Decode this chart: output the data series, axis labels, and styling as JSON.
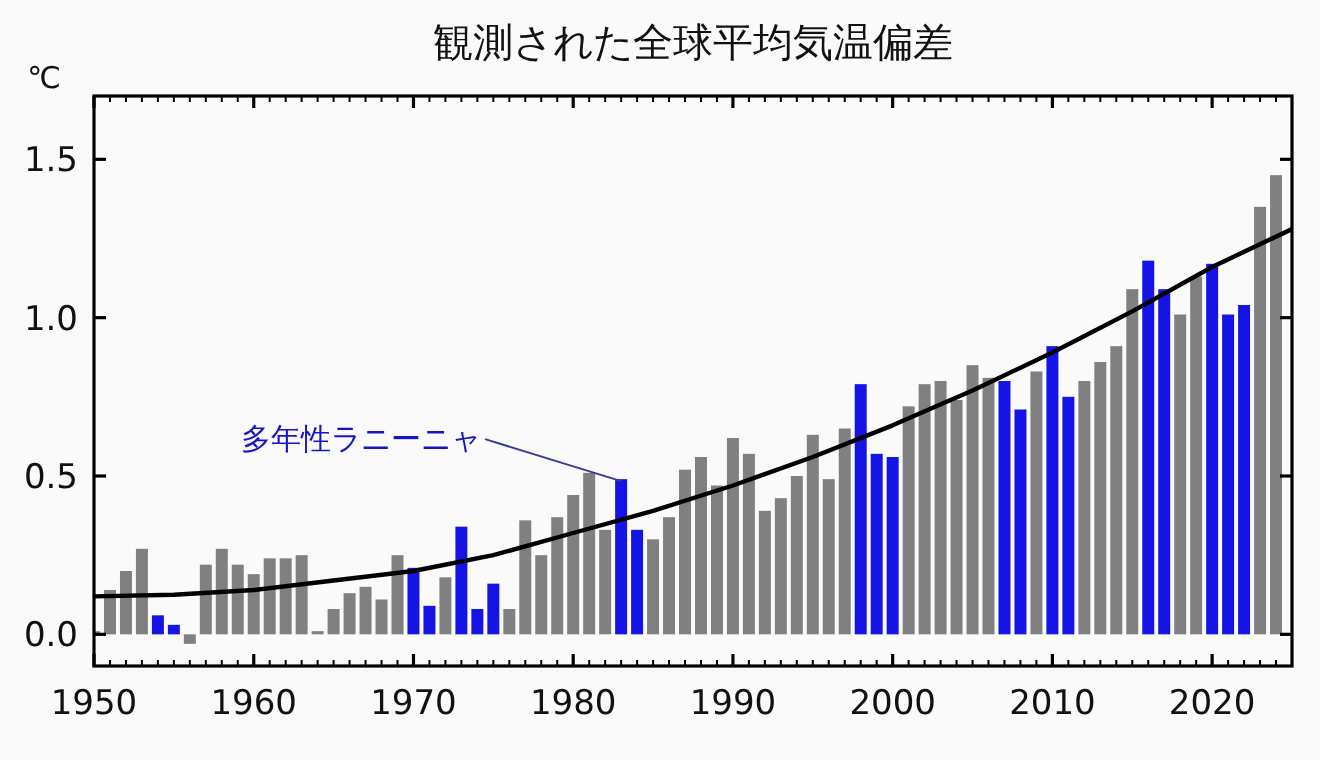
{
  "chart_data": {
    "type": "bar",
    "title": "観測された全球平均気温偏差",
    "ylabel": "℃",
    "xlim": [
      1950,
      2025
    ],
    "xticks": [
      1950,
      1960,
      1970,
      1980,
      1990,
      2000,
      2010,
      2020
    ],
    "ylim": [
      -0.1,
      1.7
    ],
    "yticks": [
      {
        "value": 0,
        "label": "0.0"
      },
      0.5,
      {
        "value": 1,
        "label": "1.0"
      },
      1.5
    ],
    "grid": false,
    "annotations": [
      {
        "text": "多年性ラニーニャ",
        "x": 1983,
        "y": 0.49
      }
    ],
    "series": [
      {
        "x": [
          1950,
          1951,
          1952,
          1953,
          1954,
          1955,
          1956,
          1957,
          1958,
          1959,
          1960,
          1961,
          1962,
          1963,
          1964,
          1965,
          1966,
          1967,
          1968,
          1969,
          1970,
          1971,
          1972,
          1973,
          1974,
          1975,
          1976,
          1977,
          1978,
          1979,
          1980,
          1981,
          1982,
          1983,
          1984,
          1985,
          1986,
          1987,
          1988,
          1989,
          1990,
          1991,
          1992,
          1993,
          1994,
          1995,
          1996,
          1997,
          1998,
          1999,
          2000,
          2001,
          2002,
          2003,
          2004,
          2005,
          2006,
          2007,
          2008,
          2009,
          2010,
          2011,
          2012,
          2013,
          2014,
          2015,
          2016,
          2017,
          2018,
          2019,
          2020,
          2021,
          2022,
          2023,
          2024
        ],
        "values": [
          0.01,
          0.14,
          0.2,
          0.27,
          0.06,
          0.03,
          -0.03,
          0.22,
          0.27,
          0.22,
          0.19,
          0.24,
          0.24,
          0.25,
          0.01,
          0.08,
          0.13,
          0.15,
          0.11,
          0.25,
          0.21,
          0.09,
          0.18,
          0.34,
          0.08,
          0.16,
          0.08,
          0.36,
          0.25,
          0.37,
          0.44,
          0.51,
          0.33,
          0.49,
          0.33,
          0.3,
          0.37,
          0.52,
          0.56,
          0.47,
          0.62,
          0.57,
          0.39,
          0.43,
          0.5,
          0.63,
          0.49,
          0.65,
          0.79,
          0.57,
          0.56,
          0.72,
          0.79,
          0.8,
          0.74,
          0.85,
          0.81,
          0.8,
          0.71,
          0.83,
          0.91,
          0.75,
          0.8,
          0.86,
          0.91,
          1.09,
          1.18,
          1.09,
          1.01,
          1.13,
          1.17,
          1.01,
          1.04,
          1.35,
          1.45
        ],
        "colors": [
          "#808080",
          "#808080",
          "#808080",
          "#808080",
          "#1414e6",
          "#1414e6",
          "#808080",
          "#808080",
          "#808080",
          "#808080",
          "#808080",
          "#808080",
          "#808080",
          "#808080",
          "#808080",
          "#808080",
          "#808080",
          "#808080",
          "#808080",
          "#808080",
          "#1414e6",
          "#1414e6",
          "#808080",
          "#1414e6",
          "#1414e6",
          "#1414e6",
          "#808080",
          "#808080",
          "#808080",
          "#808080",
          "#808080",
          "#808080",
          "#808080",
          "#1414e6",
          "#1414e6",
          "#808080",
          "#808080",
          "#808080",
          "#808080",
          "#808080",
          "#808080",
          "#808080",
          "#808080",
          "#808080",
          "#808080",
          "#808080",
          "#808080",
          "#808080",
          "#1414e6",
          "#1414e6",
          "#1414e6",
          "#808080",
          "#808080",
          "#808080",
          "#808080",
          "#808080",
          "#808080",
          "#1414e6",
          "#1414e6",
          "#808080",
          "#1414e6",
          "#1414e6",
          "#808080",
          "#808080",
          "#808080",
          "#808080",
          "#1414e6",
          "#1414e6",
          "#808080",
          "#808080",
          "#1414e6",
          "#1414e6",
          "#1414e6",
          "#808080",
          "#808080"
        ]
      },
      {
        "type": "line",
        "color": "#000000",
        "x": [
          1950,
          1955,
          1960,
          1965,
          1970,
          1975,
          1980,
          1985,
          1990,
          1995,
          2000,
          2005,
          2010,
          2015,
          2020,
          2025
        ],
        "values": [
          0.12,
          0.125,
          0.14,
          0.17,
          0.2,
          0.25,
          0.32,
          0.39,
          0.47,
          0.56,
          0.66,
          0.77,
          0.89,
          1.02,
          1.16,
          1.28
        ]
      }
    ]
  }
}
